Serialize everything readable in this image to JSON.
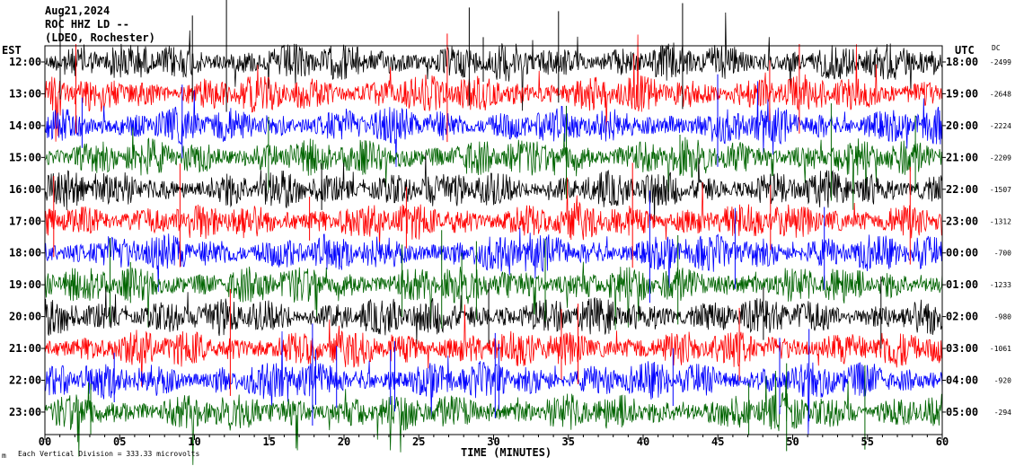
{
  "header": {
    "date": "Aug21,2024",
    "station": "ROC HHZ LD --",
    "network": "(LDEO, Rochester)"
  },
  "left_axis_label": "EST",
  "right_axis_label": "UTC",
  "dc_label": "DC",
  "x_axis_title": "TIME (MINUTES)",
  "footer_note": "Each Vertical Division =  333.33 microvolts",
  "footer_mark": "m",
  "colors": {
    "black": "#000000",
    "red": "#ff0000",
    "blue": "#0000ff",
    "green": "#006400"
  },
  "chart_data": {
    "type": "line",
    "title": "",
    "xlabel": "TIME (MINUTES)",
    "xlim": [
      0,
      60
    ],
    "x_ticks": [
      "00",
      "05",
      "10",
      "15",
      "20",
      "25",
      "30",
      "35",
      "40",
      "45",
      "50",
      "55",
      "60"
    ],
    "rows": [
      {
        "est": "12:00",
        "utc": "18:00",
        "dc": "-2499",
        "color": "black"
      },
      {
        "est": "13:00",
        "utc": "19:00",
        "dc": "-2648",
        "color": "red"
      },
      {
        "est": "14:00",
        "utc": "20:00",
        "dc": "-2224",
        "color": "blue"
      },
      {
        "est": "15:00",
        "utc": "21:00",
        "dc": "-2209",
        "color": "green"
      },
      {
        "est": "16:00",
        "utc": "22:00",
        "dc": "-1507",
        "color": "black"
      },
      {
        "est": "17:00",
        "utc": "23:00",
        "dc": "-1312",
        "color": "red"
      },
      {
        "est": "18:00",
        "utc": "00:00",
        "dc": "-700",
        "color": "blue"
      },
      {
        "est": "19:00",
        "utc": "01:00",
        "dc": "-1233",
        "color": "green"
      },
      {
        "est": "20:00",
        "utc": "02:00",
        "dc": "-980",
        "color": "black"
      },
      {
        "est": "21:00",
        "utc": "03:00",
        "dc": "-1061",
        "color": "red"
      },
      {
        "est": "22:00",
        "utc": "04:00",
        "dc": "-920",
        "color": "blue"
      },
      {
        "est": "23:00",
        "utc": "05:00",
        "dc": "-294",
        "color": "green"
      }
    ]
  }
}
